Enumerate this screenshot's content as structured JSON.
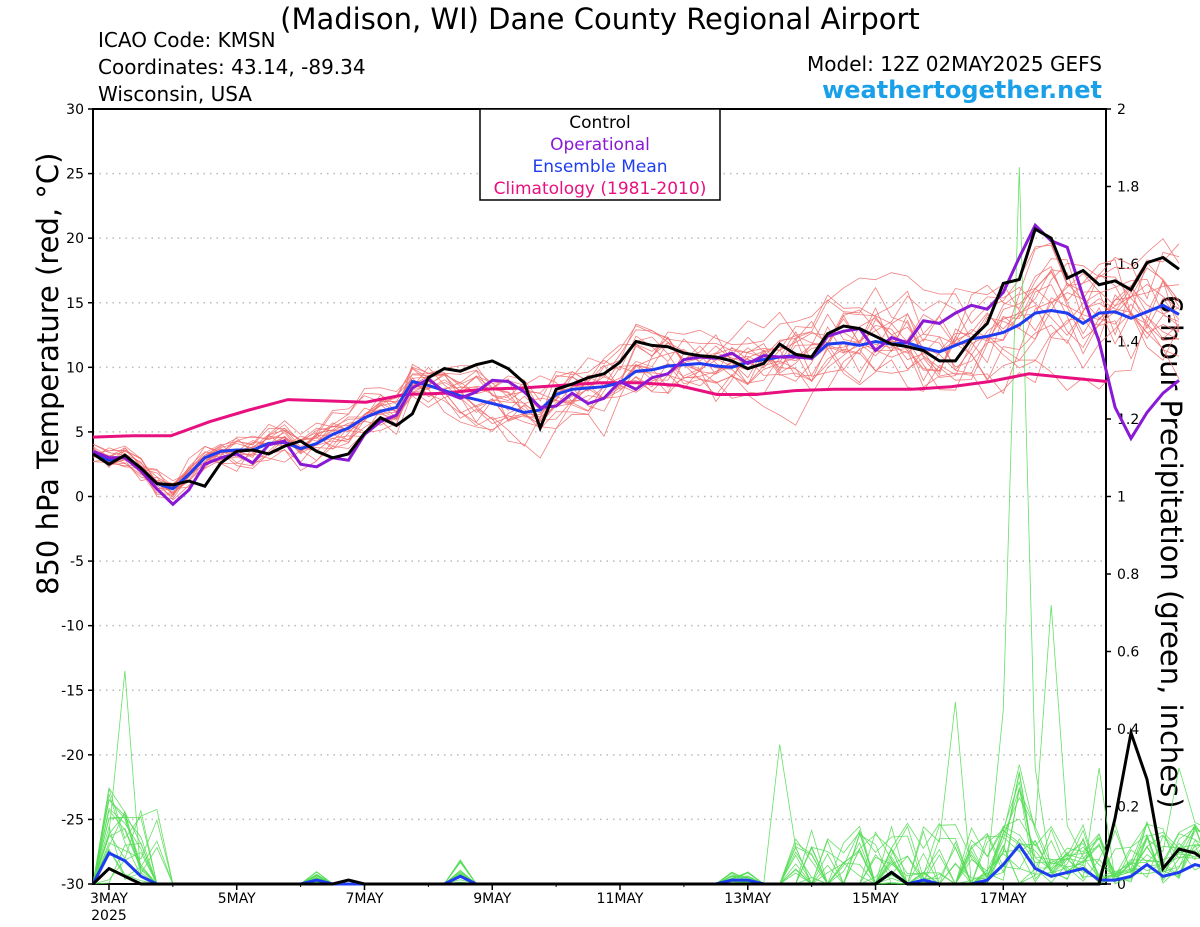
{
  "header": {
    "title": "(Madison, WI) Dane County Regional Airport",
    "icao": "ICAO Code: KMSN",
    "coordinates": "Coordinates: 43.14, -89.34",
    "region": "Wisconsin, USA",
    "model": "Model: 12Z 02MAY2025 GEFS",
    "site": "weathertogether.net"
  },
  "chart_data": {
    "type": "line",
    "ylabel": "850 hPa Temperature (red, °C)",
    "y2label": "6-hour Precipitation (green, inches)",
    "ylim": [
      -30,
      30
    ],
    "y2lim": [
      0,
      2
    ],
    "yticks": [
      "30",
      "25",
      "20",
      "15",
      "10",
      "5",
      "0",
      "-5",
      "-10",
      "-15",
      "-20",
      "-25",
      "-30"
    ],
    "y2ticks": [
      "2",
      "1.8",
      "1.6",
      "1.4",
      "1.2",
      "1",
      "0.8",
      "0.6",
      "0.4",
      "0.2",
      "0"
    ],
    "xticks": [
      "3MAY",
      "5MAY",
      "7MAY",
      "9MAY",
      "11MAY",
      "13MAY",
      "15MAY",
      "17MAY"
    ],
    "xtick_sub": "2025",
    "x_unit": "forecast hour from 12Z 02MAY2025, 6-hour steps",
    "grid": true,
    "legend_placement": "top-center",
    "legend": [
      {
        "label": "Control",
        "color": "#000000"
      },
      {
        "label": "Operational",
        "color": "#8a19d6"
      },
      {
        "label": "Ensemble Mean",
        "color": "#1f3df0"
      },
      {
        "label": "Climatology (1981-2010)",
        "color": "#e8107f"
      }
    ],
    "colors": {
      "members_temp": "#f06a6a",
      "members_precip": "#55dd55",
      "control": "#000000",
      "operational": "#8a19d6",
      "mean": "#1f3df0",
      "climatology": "#e8107f"
    },
    "temperature": {
      "control": [
        3.3,
        2.5,
        3.2,
        2.2,
        1.0,
        0.9,
        1.2,
        0.8,
        2.6,
        3.5,
        3.6,
        3.3,
        3.9,
        4.3,
        3.5,
        3.0,
        3.3,
        4.9,
        6.1,
        5.5,
        6.4,
        9.2,
        9.9,
        9.7,
        10.2,
        10.5,
        9.9,
        8.8,
        5.3,
        8.3,
        8.7,
        9.2,
        9.5,
        10.4,
        12.0,
        11.7,
        11.6,
        11.1,
        10.9,
        10.8,
        10.5,
        9.9,
        10.3,
        11.8,
        11.0,
        10.8,
        12.6,
        13.2,
        13.0,
        12.4,
        11.8,
        11.6,
        11.3,
        10.5,
        10.5,
        12.2,
        13.4,
        16.5,
        16.8,
        20.7,
        20.0,
        16.9,
        17.5,
        16.4,
        16.7,
        16.0,
        18.1,
        18.5,
        17.6
      ],
      "operational": [
        3.5,
        3.0,
        3.0,
        2.0,
        0.6,
        -0.6,
        0.5,
        2.5,
        3.0,
        3.3,
        2.6,
        4.0,
        4.3,
        2.5,
        2.3,
        3.0,
        2.8,
        4.8,
        5.8,
        6.3,
        8.4,
        9.1,
        8.1,
        7.6,
        8.1,
        9.0,
        8.9,
        8.1,
        6.9,
        7.0,
        8.0,
        7.2,
        7.6,
        8.9,
        8.3,
        9.2,
        9.5,
        10.6,
        10.8,
        10.7,
        11.1,
        10.3,
        10.9,
        10.8,
        10.8,
        10.7,
        12.4,
        12.8,
        13.0,
        11.3,
        12.3,
        11.9,
        13.6,
        13.4,
        14.2,
        14.8,
        14.5,
        15.8,
        18.5,
        21.0,
        19.8,
        19.3,
        15.5,
        12.0,
        6.9,
        4.5,
        6.5,
        8.0,
        9.0
      ],
      "mean": [
        3.4,
        2.8,
        3.1,
        2.2,
        1.0,
        0.6,
        1.7,
        3.0,
        3.5,
        3.6,
        3.6,
        4.1,
        4.2,
        3.7,
        4.1,
        4.8,
        5.3,
        6.1,
        6.6,
        6.9,
        8.9,
        8.6,
        8.2,
        7.8,
        7.5,
        7.2,
        6.9,
        6.5,
        6.7,
        7.9,
        8.3,
        8.4,
        8.5,
        8.8,
        9.7,
        9.8,
        10.1,
        10.2,
        10.3,
        10.1,
        10.0,
        10.4,
        10.6,
        10.8,
        10.9,
        10.7,
        11.8,
        11.9,
        11.7,
        12.0,
        11.8,
        11.9,
        11.5,
        11.2,
        11.7,
        12.2,
        12.4,
        12.7,
        13.3,
        14.2,
        14.4,
        14.2,
        13.4,
        14.2,
        14.3,
        13.8,
        14.3,
        14.8,
        14.1
      ],
      "climatology": [
        4.6,
        4.7,
        4.7,
        5.8,
        6.7,
        7.5,
        7.4,
        7.3,
        7.9,
        8.0,
        8.3,
        8.4,
        8.6,
        8.8,
        8.8,
        8.6,
        7.9,
        7.9,
        8.2,
        8.3,
        8.3,
        8.3,
        8.5,
        8.9,
        9.5,
        9.2,
        8.9
      ]
    },
    "precipitation": {
      "control": [
        0.0,
        0.04,
        0.02,
        0.0,
        0.0,
        0.0,
        0.0,
        0.0,
        0.0,
        0.0,
        0.0,
        0.0,
        0.0,
        0.0,
        0.0,
        0.0,
        0.01,
        0.0,
        0.0,
        0.0,
        0.0,
        0.0,
        0.0,
        0.0,
        0.0,
        0.0,
        0.0,
        0.0,
        0.0,
        0.0,
        0.0,
        0.0,
        0.0,
        0.0,
        0.0,
        0.0,
        0.0,
        0.0,
        0.0,
        0.0,
        0.0,
        0.0,
        0.0,
        0.0,
        0.0,
        0.0,
        0.0,
        0.0,
        0.0,
        0.0,
        0.03,
        0.0,
        0.0,
        0.0,
        0.0,
        0.0,
        0.0,
        0.0,
        0.0,
        0.0,
        0.0,
        0.0,
        0.0,
        0.0,
        0.17,
        0.39,
        0.27,
        0.04,
        0.09,
        0.08,
        0.05
      ],
      "mean": [
        0.0,
        0.08,
        0.06,
        0.02,
        0.0,
        0.0,
        0.0,
        0.0,
        0.0,
        0.0,
        0.0,
        0.0,
        0.0,
        0.0,
        0.01,
        0.0,
        0.0,
        0.0,
        0.0,
        0.0,
        0.0,
        0.0,
        0.0,
        0.02,
        0.0,
        0.0,
        0.0,
        0.0,
        0.0,
        0.0,
        0.0,
        0.0,
        0.0,
        0.0,
        0.0,
        0.0,
        0.0,
        0.0,
        0.0,
        0.0,
        0.01,
        0.01,
        0.0,
        0.0,
        0.0,
        0.0,
        0.0,
        0.0,
        0.0,
        0.0,
        0.03,
        0.0,
        0.01,
        0.0,
        0.0,
        0.0,
        0.01,
        0.05,
        0.1,
        0.04,
        0.02,
        0.03,
        0.04,
        0.01,
        0.01,
        0.02,
        0.05,
        0.02,
        0.03,
        0.05,
        0.04,
        0.03,
        0.04,
        0.05
      ]
    }
  }
}
